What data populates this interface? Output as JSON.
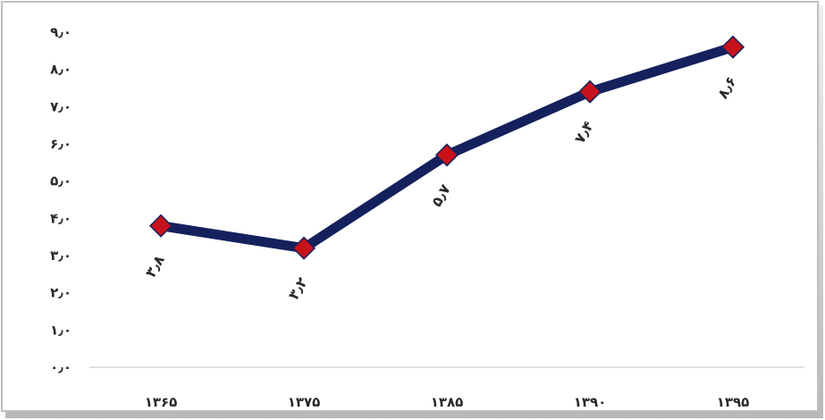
{
  "chart_data": {
    "type": "line",
    "title": "",
    "xlabel": "",
    "ylabel": "",
    "categories": [
      "۱۳۶۵",
      "۱۳۷۵",
      "۱۳۸۵",
      "۱۳۹۰",
      "۱۳۹۵"
    ],
    "series": [
      {
        "values": [
          3.8,
          3.2,
          5.7,
          7.4,
          8.6
        ]
      }
    ],
    "data_labels": [
      "۳٫۸",
      "۳٫۲",
      "۵٫۷",
      "۷٫۴",
      "۸٫۶"
    ],
    "ylim": [
      0,
      9
    ],
    "y_ticks": [
      0,
      1,
      2,
      3,
      4,
      5,
      6,
      7,
      8,
      9
    ],
    "y_tick_labels": [
      "۰٫۰",
      "۱٫۰",
      "۲٫۰",
      "۳٫۰",
      "۴٫۰",
      "۵٫۰",
      "۶٫۰",
      "۷٫۰",
      "۸٫۰",
      "۹٫۰"
    ],
    "grid": false,
    "legend": "none",
    "colors": {
      "line": "#14215c",
      "marker": "#c8121b",
      "marker_border": "#14215c",
      "axis": "#d9d9d9"
    }
  }
}
